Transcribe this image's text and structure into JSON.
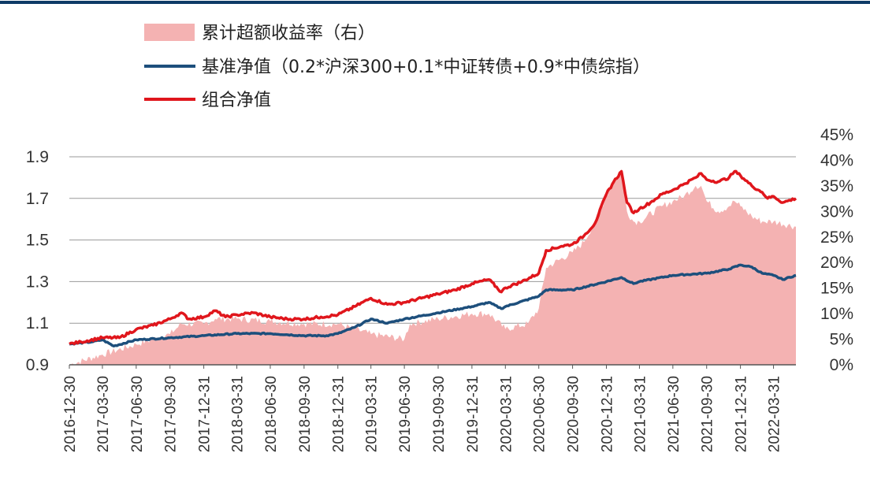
{
  "chart_data": {
    "type": "line",
    "legend": {
      "placement": "top-left",
      "entries": [
        {
          "key": "excess",
          "label": "累计超额收益率（右）",
          "marker": "area"
        },
        {
          "key": "benchmark",
          "label": "基准净值（0.2*沪深300+0.1*中证转债+0.9*中债综指）",
          "marker": "line"
        },
        {
          "key": "portfolio",
          "label": "组合净值",
          "marker": "line"
        }
      ]
    },
    "colors": {
      "excess": "#f4b2b2",
      "benchmark": "#1d4f7c",
      "portfolio": "#e0161c",
      "grid": "#9a9a9a",
      "axis": "#555555",
      "top_border": "#0d3a66"
    },
    "grid": true,
    "y_left": {
      "ylim": [
        0.9,
        1.9
      ],
      "ticks": [
        0.9,
        1.1,
        1.3,
        1.5,
        1.7,
        1.9
      ],
      "tick_labels": [
        "0.9",
        "1.1",
        "1.3",
        "1.5",
        "1.7",
        "1.9"
      ]
    },
    "y_right": {
      "ylim": [
        0,
        45
      ],
      "ticks": [
        0,
        5,
        10,
        15,
        20,
        25,
        30,
        35,
        40,
        45
      ],
      "tick_labels": [
        "0%",
        "5%",
        "10%",
        "15%",
        "20%",
        "25%",
        "30%",
        "35%",
        "40%",
        "45%"
      ]
    },
    "x_ticks": [
      "2016-12-30",
      "2017-03-30",
      "2017-06-30",
      "2017-09-30",
      "2017-12-31",
      "2018-03-31",
      "2018-06-30",
      "2018-09-30",
      "2018-12-31",
      "2019-03-31",
      "2019-06-30",
      "2019-09-30",
      "2019-12-31",
      "2020-03-31",
      "2020-06-30",
      "2020-09-30",
      "2020-12-31",
      "2021-03-31",
      "2021-06-30",
      "2021-09-30",
      "2021-12-31",
      "2022-03-31"
    ],
    "x_range": [
      "2016-12-30",
      "2022-05-31"
    ],
    "series": [
      {
        "key": "portfolio",
        "axis": "left",
        "points": [
          [
            "2016-12-30",
            1.0
          ],
          [
            "2017-01-31",
            1.01
          ],
          [
            "2017-03-30",
            1.03
          ],
          [
            "2017-05-15",
            1.03
          ],
          [
            "2017-06-30",
            1.07
          ],
          [
            "2017-08-15",
            1.09
          ],
          [
            "2017-09-30",
            1.12
          ],
          [
            "2017-10-31",
            1.15
          ],
          [
            "2017-11-20",
            1.12
          ],
          [
            "2017-12-31",
            1.13
          ],
          [
            "2018-01-31",
            1.16
          ],
          [
            "2018-02-28",
            1.13
          ],
          [
            "2018-03-31",
            1.14
          ],
          [
            "2018-05-15",
            1.15
          ],
          [
            "2018-06-30",
            1.13
          ],
          [
            "2018-08-15",
            1.12
          ],
          [
            "2018-09-30",
            1.12
          ],
          [
            "2018-11-15",
            1.13
          ],
          [
            "2018-12-31",
            1.14
          ],
          [
            "2019-02-15",
            1.18
          ],
          [
            "2019-03-31",
            1.22
          ],
          [
            "2019-05-15",
            1.19
          ],
          [
            "2019-06-30",
            1.2
          ],
          [
            "2019-08-15",
            1.22
          ],
          [
            "2019-09-30",
            1.24
          ],
          [
            "2019-11-15",
            1.26
          ],
          [
            "2019-12-31",
            1.29
          ],
          [
            "2020-02-15",
            1.31
          ],
          [
            "2020-03-20",
            1.25
          ],
          [
            "2020-03-31",
            1.27
          ],
          [
            "2020-05-15",
            1.3
          ],
          [
            "2020-06-30",
            1.34
          ],
          [
            "2020-07-20",
            1.45
          ],
          [
            "2020-08-31",
            1.47
          ],
          [
            "2020-09-30",
            1.48
          ],
          [
            "2020-10-31",
            1.52
          ],
          [
            "2020-11-30",
            1.58
          ],
          [
            "2020-12-31",
            1.72
          ],
          [
            "2021-01-20",
            1.78
          ],
          [
            "2021-02-10",
            1.83
          ],
          [
            "2021-02-25",
            1.68
          ],
          [
            "2021-03-15",
            1.63
          ],
          [
            "2021-03-31",
            1.65
          ],
          [
            "2021-04-30",
            1.68
          ],
          [
            "2021-05-31",
            1.72
          ],
          [
            "2021-06-30",
            1.74
          ],
          [
            "2021-07-31",
            1.77
          ],
          [
            "2021-08-31",
            1.8
          ],
          [
            "2021-09-15",
            1.82
          ],
          [
            "2021-09-30",
            1.79
          ],
          [
            "2021-10-31",
            1.78
          ],
          [
            "2021-11-30",
            1.8
          ],
          [
            "2021-12-15",
            1.83
          ],
          [
            "2021-12-31",
            1.81
          ],
          [
            "2022-01-31",
            1.76
          ],
          [
            "2022-02-28",
            1.73
          ],
          [
            "2022-03-15",
            1.7
          ],
          [
            "2022-03-31",
            1.71
          ],
          [
            "2022-04-25",
            1.68
          ],
          [
            "2022-05-31",
            1.7
          ]
        ]
      },
      {
        "key": "benchmark",
        "axis": "left",
        "points": [
          [
            "2016-12-30",
            1.0
          ],
          [
            "2017-02-28",
            1.01
          ],
          [
            "2017-03-30",
            1.02
          ],
          [
            "2017-04-30",
            0.99
          ],
          [
            "2017-06-30",
            1.02
          ],
          [
            "2017-09-30",
            1.03
          ],
          [
            "2017-12-31",
            1.04
          ],
          [
            "2018-03-31",
            1.05
          ],
          [
            "2018-06-30",
            1.05
          ],
          [
            "2018-09-30",
            1.04
          ],
          [
            "2018-11-30",
            1.04
          ],
          [
            "2018-12-31",
            1.05
          ],
          [
            "2019-02-15",
            1.08
          ],
          [
            "2019-03-31",
            1.12
          ],
          [
            "2019-05-15",
            1.1
          ],
          [
            "2019-06-30",
            1.12
          ],
          [
            "2019-09-30",
            1.15
          ],
          [
            "2019-12-31",
            1.18
          ],
          [
            "2020-02-15",
            1.2
          ],
          [
            "2020-03-20",
            1.17
          ],
          [
            "2020-03-31",
            1.18
          ],
          [
            "2020-06-30",
            1.23
          ],
          [
            "2020-07-20",
            1.26
          ],
          [
            "2020-09-30",
            1.26
          ],
          [
            "2020-12-31",
            1.3
          ],
          [
            "2021-02-10",
            1.32
          ],
          [
            "2021-03-15",
            1.29
          ],
          [
            "2021-03-31",
            1.3
          ],
          [
            "2021-06-30",
            1.33
          ],
          [
            "2021-09-30",
            1.34
          ],
          [
            "2021-11-30",
            1.36
          ],
          [
            "2021-12-31",
            1.38
          ],
          [
            "2022-01-31",
            1.37
          ],
          [
            "2022-02-28",
            1.34
          ],
          [
            "2022-03-31",
            1.33
          ],
          [
            "2022-04-25",
            1.31
          ],
          [
            "2022-05-31",
            1.33
          ]
        ]
      },
      {
        "key": "excess",
        "axis": "right",
        "points": [
          [
            "2016-12-30",
            0
          ],
          [
            "2017-03-30",
            2
          ],
          [
            "2017-06-30",
            4
          ],
          [
            "2017-09-30",
            6
          ],
          [
            "2017-10-31",
            8
          ],
          [
            "2017-12-31",
            8
          ],
          [
            "2018-01-31",
            9
          ],
          [
            "2018-03-31",
            9
          ],
          [
            "2018-06-30",
            8.5
          ],
          [
            "2018-09-30",
            8
          ],
          [
            "2018-12-31",
            8
          ],
          [
            "2019-03-31",
            6
          ],
          [
            "2019-06-30",
            5
          ],
          [
            "2019-07-15",
            8
          ],
          [
            "2019-09-30",
            9
          ],
          [
            "2019-12-31",
            10
          ],
          [
            "2020-02-15",
            10
          ],
          [
            "2020-03-31",
            7
          ],
          [
            "2020-05-31",
            8
          ],
          [
            "2020-06-30",
            11
          ],
          [
            "2020-07-20",
            19
          ],
          [
            "2020-09-30",
            22
          ],
          [
            "2020-10-31",
            24
          ],
          [
            "2020-11-30",
            28
          ],
          [
            "2020-12-31",
            33
          ],
          [
            "2021-01-20",
            36
          ],
          [
            "2021-02-10",
            38
          ],
          [
            "2021-02-25",
            30
          ],
          [
            "2021-03-15",
            28
          ],
          [
            "2021-03-31",
            28
          ],
          [
            "2021-05-31",
            31
          ],
          [
            "2021-06-30",
            32
          ],
          [
            "2021-07-31",
            33
          ],
          [
            "2021-08-31",
            35
          ],
          [
            "2021-09-15",
            35
          ],
          [
            "2021-09-30",
            32
          ],
          [
            "2021-10-31",
            30
          ],
          [
            "2021-11-30",
            31
          ],
          [
            "2021-12-15",
            32
          ],
          [
            "2021-12-31",
            31
          ],
          [
            "2022-01-31",
            29
          ],
          [
            "2022-02-28",
            28
          ],
          [
            "2022-03-31",
            28
          ],
          [
            "2022-05-31",
            27
          ]
        ]
      }
    ]
  }
}
